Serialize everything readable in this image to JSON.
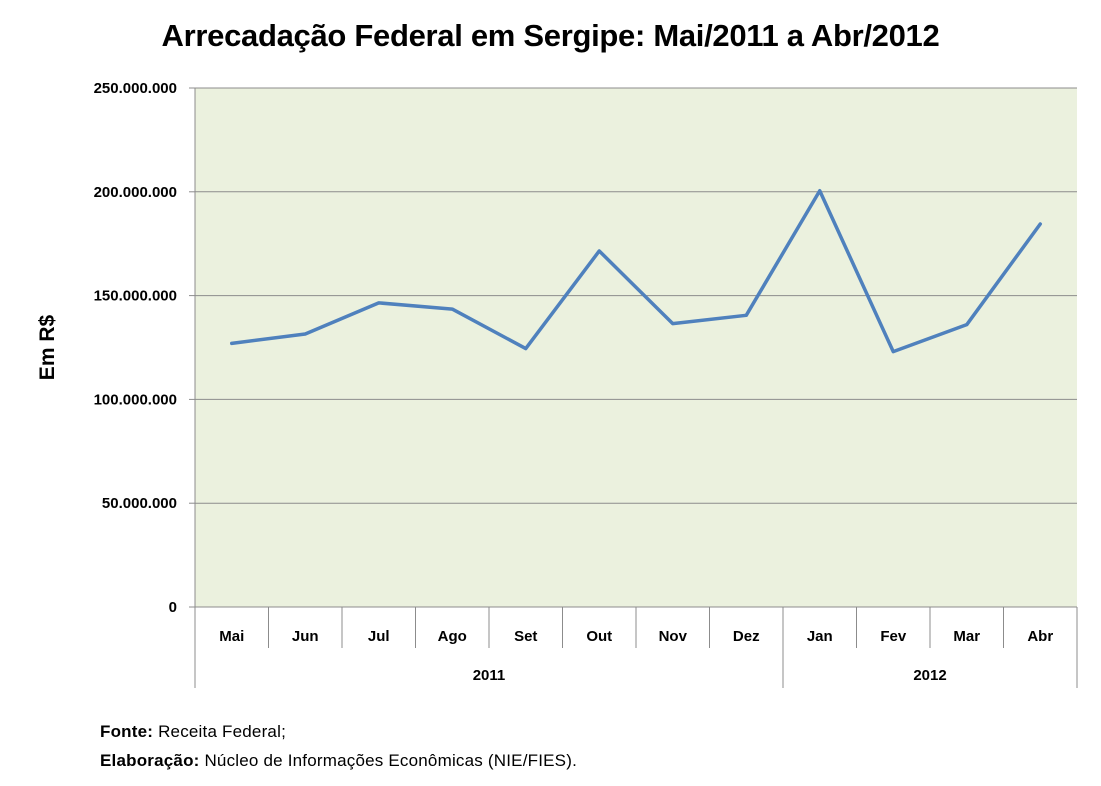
{
  "chart_data": {
    "type": "line",
    "title": "Arrecadação Federal em Sergipe: Mai/2011 a Abr/2012",
    "xlabel": "",
    "ylabel": "Em R$",
    "categories": [
      "Mai",
      "Jun",
      "Jul",
      "Ago",
      "Set",
      "Out",
      "Nov",
      "Dez",
      "Jan",
      "Fev",
      "Mar",
      "Abr"
    ],
    "groups": [
      {
        "label": "2011",
        "count": 8
      },
      {
        "label": "2012",
        "count": 4
      }
    ],
    "series": [
      {
        "name": "Arrecadação",
        "color": "#4F81BD",
        "values": [
          127000000,
          131500000,
          146500000,
          143500000,
          124500000,
          171500000,
          136500000,
          140500000,
          200500000,
          123000000,
          136000000,
          184500000
        ]
      }
    ],
    "yticks": [
      "0",
      "50.000.000",
      "100.000.000",
      "150.000.000",
      "200.000.000",
      "250.000.000"
    ],
    "ylim": [
      0,
      250000000
    ],
    "grid": true,
    "plot_background": "#EBF1DE"
  },
  "footer": {
    "source_label": "Fonte:",
    "source_text": " Receita Federal;",
    "elab_label": "Elaboração:",
    "elab_text": " Núcleo de Informações Econômicas (NIE/FIES)."
  }
}
